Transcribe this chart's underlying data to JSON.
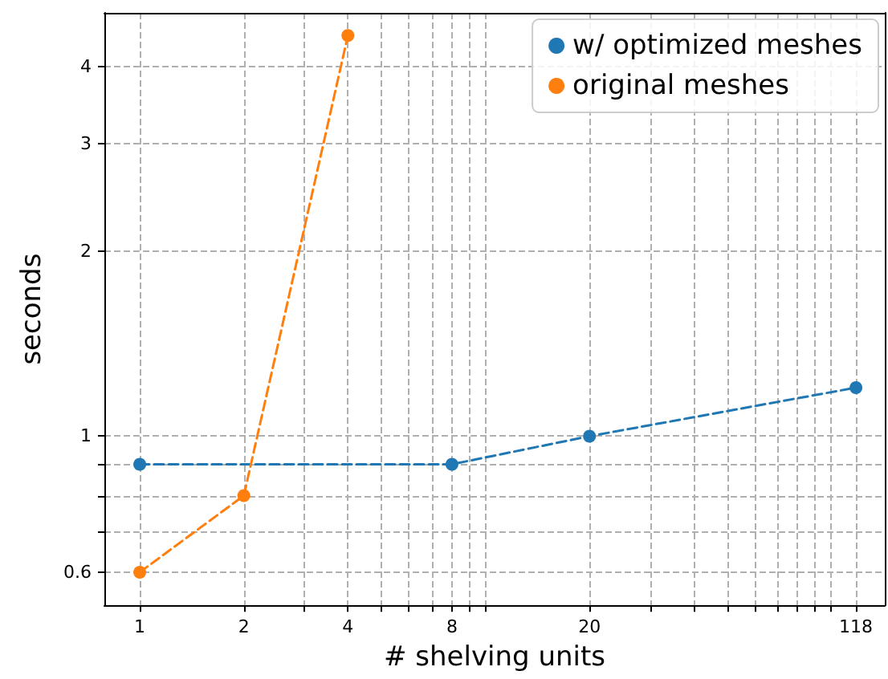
{
  "chart_data": {
    "type": "line",
    "xlabel": "# shelving units",
    "ylabel": "seconds",
    "log": "xy",
    "grid": true,
    "legend": "top right",
    "marker": "circle",
    "line_style": "dashed",
    "xlim": [
      0.79,
      143
    ],
    "ylim": [
      0.53,
      4.9
    ],
    "xticks": [
      1,
      2,
      {
        "value": 3,
        "label": null
      },
      4,
      {
        "value": 5,
        "label": null
      },
      {
        "value": 6,
        "label": null
      },
      {
        "value": 7,
        "label": null
      },
      8,
      {
        "value": 9,
        "label": null
      },
      {
        "value": 10,
        "label": null
      },
      20,
      {
        "value": 30,
        "label": null
      },
      {
        "value": 40,
        "label": null
      },
      {
        "value": 50,
        "label": null
      },
      {
        "value": 60,
        "label": null
      },
      {
        "value": 70,
        "label": null
      },
      {
        "value": 80,
        "label": null
      },
      {
        "value": 90,
        "label": null
      },
      {
        "value": 100,
        "label": null
      },
      118
    ],
    "yticks": [
      0.6,
      {
        "value": 0.7,
        "label": null
      },
      {
        "value": 0.8,
        "label": null
      },
      {
        "value": 0.9,
        "label": null
      },
      1,
      2,
      3,
      4
    ],
    "series": [
      {
        "name": "w/ optimized meshes",
        "color": "#1f77b4",
        "x": [
          1,
          8,
          20,
          118
        ],
        "values": [
          0.9,
          0.9,
          1.0,
          1.2
        ]
      },
      {
        "name": "original meshes",
        "color": "#ff7f0e",
        "x": [
          1,
          2,
          4
        ],
        "values": [
          0.6,
          0.8,
          4.5
        ]
      }
    ]
  }
}
